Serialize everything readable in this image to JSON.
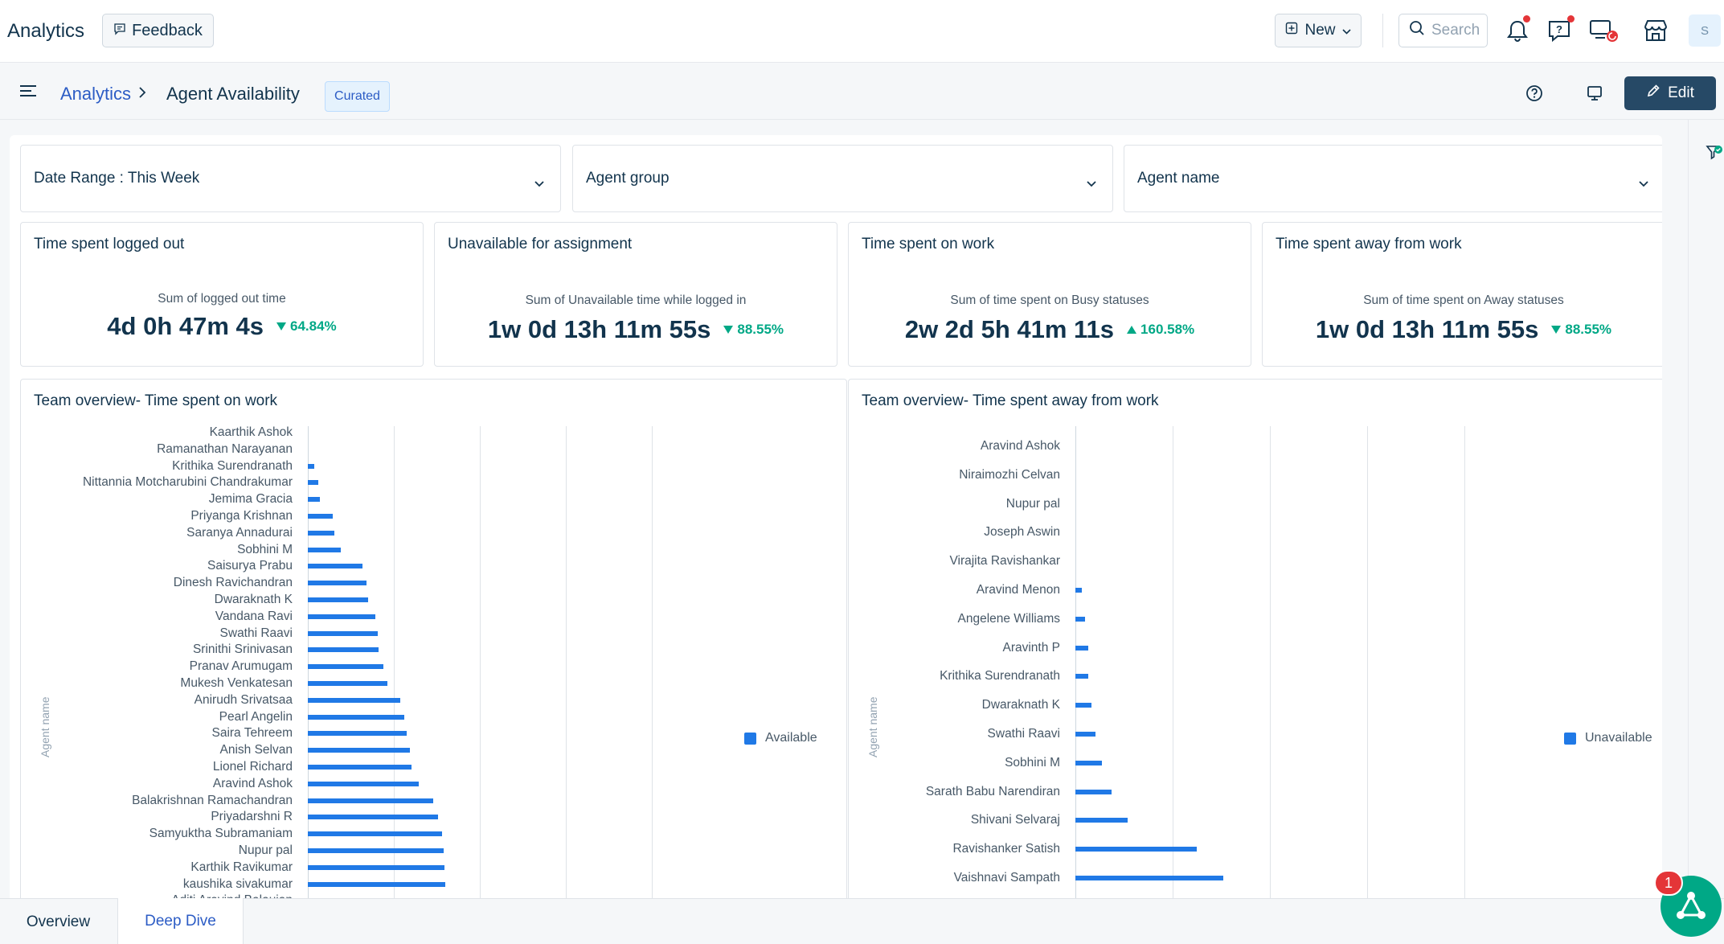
{
  "header": {
    "app_title": "Analytics",
    "feedback_label": "Feedback",
    "new_label": "New",
    "search_placeholder": "Search",
    "avatar_initial": "S"
  },
  "breadcrumb": {
    "parent": "Analytics",
    "current": "Agent Availability",
    "badge": "Curated",
    "edit_label": "Edit"
  },
  "filters": [
    {
      "label": "Date Range :  This Week"
    },
    {
      "label": "Agent group"
    },
    {
      "label": "Agent name"
    }
  ],
  "kpis": [
    {
      "title": "Time spent logged out",
      "subtitle": "Sum of logged out time",
      "value": "4d 0h 47m 4s",
      "change": "64.84%",
      "direction": "down"
    },
    {
      "title": "Unavailable for assignment",
      "subtitle": "Sum of Unavailable time while logged in",
      "value": "1w 0d 13h 11m 55s",
      "change": "88.55%",
      "direction": "down"
    },
    {
      "title": "Time spent on work",
      "subtitle": "Sum of time spent on Busy statuses",
      "value": "2w 2d 5h 41m 11s",
      "change": "160.58%",
      "direction": "up"
    },
    {
      "title": "Time spent away from work",
      "subtitle": "Sum of time spent on Away statuses",
      "value": "1w 0d 13h 11m 55s",
      "change": "88.55%",
      "direction": "down"
    }
  ],
  "chart_data": [
    {
      "type": "bar",
      "orientation": "horizontal",
      "title": "Team overview- Time spent on work",
      "ylabel": "Agent name",
      "xlabel": "",
      "legend": "right",
      "grid": true,
      "series": [
        {
          "name": "Available",
          "color": "#2079e6"
        }
      ],
      "categories": [
        "Kaarthik Ashok",
        "Ramanathan Narayanan",
        "Krithika Surendranath",
        "Nittannia Motcharubini Chandrakumar",
        "Jemima Gracia",
        "Priyanga Krishnan",
        "Saranya Annadurai",
        "Sobhini M",
        "Saisurya Prabu",
        "Dinesh Ravichandran",
        "Dwaraknath K",
        "Vandana Ravi",
        "Swathi Raavi",
        "Srinithi Srinivasan",
        "Pranav Arumugam",
        "Mukesh Venkatesan",
        "Anirudh Srivatsaa",
        "Pearl Angelin",
        "Saira Tehreem",
        "Anish Selvan",
        "Lionel Richard",
        "Aravind Ashok",
        "Balakrishnan Ramachandran",
        "Priyadarshni R",
        "Samyuktha Subramaniam",
        "Nupur pal",
        "Karthik Ravikumar",
        "kaushika sivakumar",
        "Aditi Aravind Balaujan"
      ],
      "values": [
        0,
        0,
        8,
        12,
        14,
        30,
        32,
        39,
        65,
        70,
        72,
        81,
        83,
        84,
        90,
        95,
        110,
        115,
        118,
        122,
        124,
        132,
        150,
        155,
        160,
        162,
        163,
        164,
        165
      ],
      "values_unit": "relative (axis ticks not labeled)"
    },
    {
      "type": "bar",
      "orientation": "horizontal",
      "title": "Team overview- Time spent away from work",
      "ylabel": "Agent name",
      "xlabel": "",
      "legend": "right",
      "grid": true,
      "series": [
        {
          "name": "Unavailable",
          "color": "#2079e6"
        }
      ],
      "categories": [
        "Aravind Ashok",
        "Niraimozhi Celvan",
        "Nupur pal",
        "Joseph Aswin",
        "Virajita Ravishankar",
        "Aravind Menon",
        "Angelene Williams",
        "Aravinth P",
        "Krithika Surendranath",
        "Dwaraknath K",
        "Swathi Raavi",
        "Sobhini M",
        "Sarath Babu Narendiran",
        "Shivani Selvaraj",
        "Ravishanker Satish",
        "Vaishnavi Sampath"
      ],
      "values": [
        0,
        0,
        0,
        0,
        0,
        2,
        3,
        4,
        4,
        5,
        6,
        8,
        11,
        16,
        37,
        45
      ],
      "values_unit": "relative (axis ticks not labeled)"
    }
  ],
  "tabs": [
    {
      "label": "Overview"
    },
    {
      "label": "Deep Dive"
    }
  ],
  "assistant": {
    "badge": "1"
  }
}
